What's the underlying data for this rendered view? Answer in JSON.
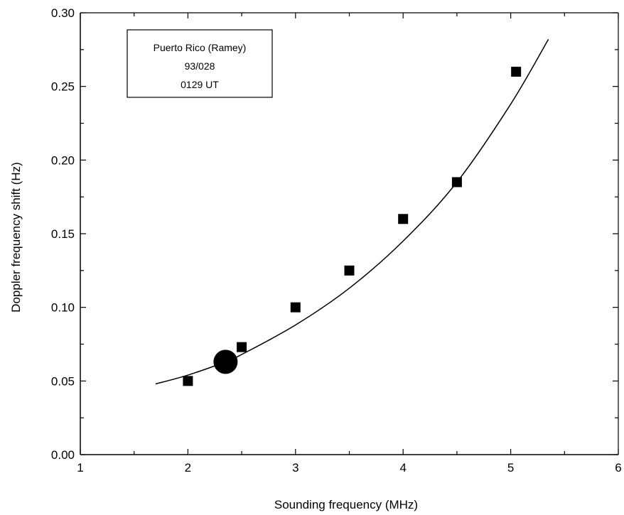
{
  "chart_data": {
    "type": "scatter",
    "xlabel": "Sounding frequency (MHz)",
    "ylabel": "Doppler frequency shift (Hz)",
    "xlim": [
      1,
      6
    ],
    "ylim": [
      0.0,
      0.3
    ],
    "x_ticks": [
      "1",
      "2",
      "3",
      "4",
      "5",
      "6"
    ],
    "y_ticks": [
      "0.00",
      "0.05",
      "0.10",
      "0.15",
      "0.20",
      "0.25",
      "0.30"
    ],
    "grid": false,
    "annotation": [
      "Puerto Rico (Ramey)",
      "93/028",
      "0129 UT"
    ],
    "series": [
      {
        "marker": "square",
        "x": [
          2.0,
          2.5,
          3.0,
          3.5,
          4.0,
          4.5,
          5.05
        ],
        "y": [
          0.05,
          0.073,
          0.1,
          0.125,
          0.16,
          0.185,
          0.26
        ]
      },
      {
        "marker": "circle",
        "x": [
          2.35
        ],
        "y": [
          0.063
        ]
      },
      {
        "marker": "line",
        "x": [
          1.7,
          2.0,
          2.35,
          2.5,
          3.0,
          3.5,
          4.0,
          4.5,
          5.0,
          5.35
        ],
        "y": [
          0.048,
          0.054,
          0.063,
          0.068,
          0.088,
          0.113,
          0.145,
          0.185,
          0.238,
          0.282
        ]
      }
    ]
  }
}
